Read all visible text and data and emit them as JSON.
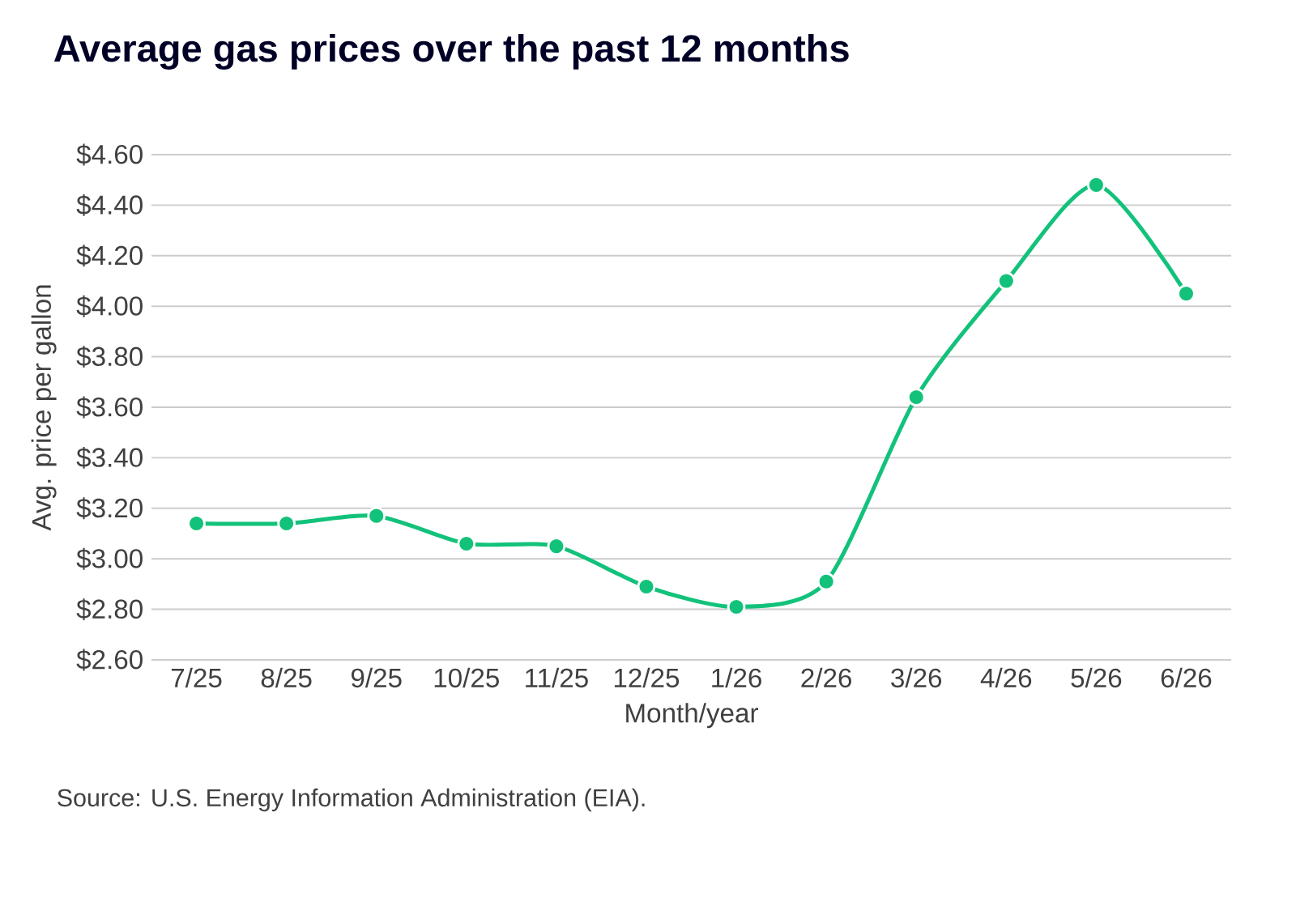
{
  "chart_data": {
    "type": "line",
    "title": "Average gas prices over the past 12 months",
    "xlabel": "Month/year",
    "ylabel": "Avg. price per gallon",
    "categories": [
      "7/25",
      "8/25",
      "9/25",
      "10/25",
      "11/25",
      "12/25",
      "1/26",
      "2/26",
      "3/26",
      "4/26",
      "5/26",
      "6/26"
    ],
    "series": [
      {
        "color": "#12c27b",
        "values": [
          3.14,
          3.14,
          3.17,
          3.06,
          3.05,
          2.89,
          2.81,
          2.91,
          3.64,
          4.1,
          4.48,
          4.05
        ]
      }
    ],
    "ylim": [
      2.6,
      4.6
    ],
    "yticks": [
      {
        "value": 2.6,
        "label": "$2.60"
      },
      {
        "value": 2.8,
        "label": "$2.80"
      },
      {
        "value": 3.0,
        "label": "$3.00"
      },
      {
        "value": 3.2,
        "label": "$3.20"
      },
      {
        "value": 3.4,
        "label": "$3.40"
      },
      {
        "value": 3.6,
        "label": "$3.60"
      },
      {
        "value": 3.8,
        "label": "$3.80"
      },
      {
        "value": 4.0,
        "label": "$4.00"
      },
      {
        "value": 4.2,
        "label": "$4.20"
      },
      {
        "value": 4.4,
        "label": "$4.40"
      },
      {
        "value": 4.6,
        "label": "$4.60"
      }
    ],
    "grid": "y",
    "marker": "circle",
    "line_style": "solid",
    "annotations": [
      "Source: U.S. Energy Information Administration (EIA)."
    ]
  }
}
